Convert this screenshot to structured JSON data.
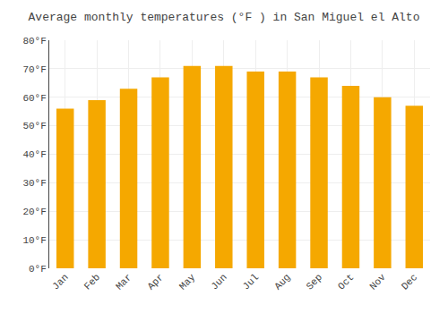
{
  "chart_data": {
    "type": "bar",
    "title": "Average monthly temperatures (°F ) in San Miguel el Alto",
    "categories": [
      "Jan",
      "Feb",
      "Mar",
      "Apr",
      "May",
      "Jun",
      "Jul",
      "Aug",
      "Sep",
      "Oct",
      "Nov",
      "Dec"
    ],
    "values": [
      56,
      59,
      63,
      67,
      71,
      71,
      69,
      69,
      67,
      64,
      60,
      57
    ],
    "color": "#F5A800",
    "ylim": [
      0,
      80
    ],
    "yticks": [
      {
        "value": 0,
        "label": "0°F"
      },
      {
        "value": 10,
        "label": "10°F"
      },
      {
        "value": 20,
        "label": "20°F"
      },
      {
        "value": 30,
        "label": "30°F"
      },
      {
        "value": 40,
        "label": "40°F"
      },
      {
        "value": 50,
        "label": "50°F"
      },
      {
        "value": 60,
        "label": "60°F"
      },
      {
        "value": 70,
        "label": "70°F"
      },
      {
        "value": 80,
        "label": "80°F"
      }
    ],
    "grid": true
  }
}
